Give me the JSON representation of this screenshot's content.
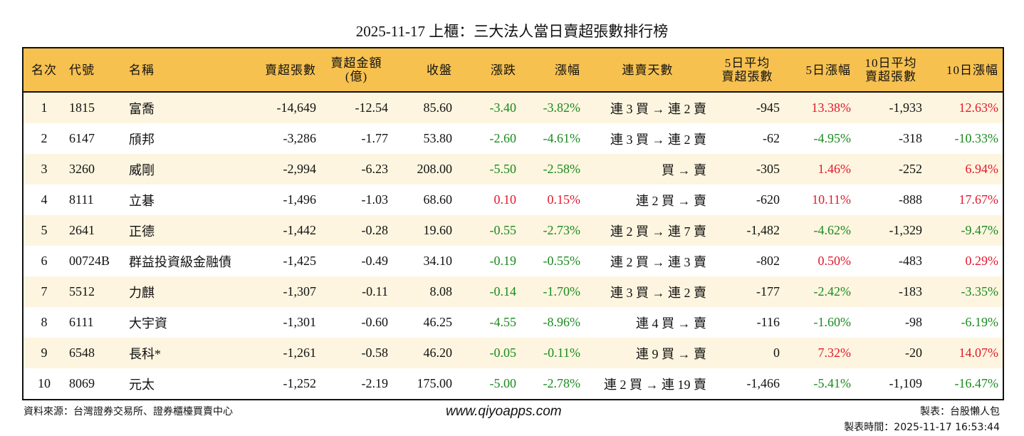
{
  "title": "2025-11-17 上櫃：三大法人當日賣超張數排行榜",
  "colors": {
    "header_bg": "#f7c150",
    "row_alt_bg": "#fdf5df",
    "up": "#e3182d",
    "down": "#1b8a1e"
  },
  "headers": [
    "名次",
    "代號",
    "名稱",
    "賣超張數",
    "賣超金額\n(億)",
    "收盤",
    "漲跌",
    "漲幅",
    "連賣天數",
    "5日平均\n賣超張數",
    "5日漲幅",
    "10日平均\n賣超張數",
    "10日漲幅"
  ],
  "rows": [
    [
      "1",
      "1815",
      "富喬",
      "-14,649",
      "-12.54",
      "85.60",
      "-3.40",
      "-3.82%",
      "連 3 買 → 連 2 賣",
      "-945",
      "13.38%",
      "-1,933",
      "12.63%"
    ],
    [
      "2",
      "6147",
      "頎邦",
      "-3,286",
      "-1.77",
      "53.80",
      "-2.60",
      "-4.61%",
      "連 3 買 → 連 2 賣",
      "-62",
      "-4.95%",
      "-318",
      "-10.33%"
    ],
    [
      "3",
      "3260",
      "威剛",
      "-2,994",
      "-6.23",
      "208.00",
      "-5.50",
      "-2.58%",
      "買 → 賣",
      "-305",
      "1.46%",
      "-252",
      "6.94%"
    ],
    [
      "4",
      "8111",
      "立碁",
      "-1,496",
      "-1.03",
      "68.60",
      "0.10",
      "0.15%",
      "連 2 買 → 賣",
      "-620",
      "10.11%",
      "-888",
      "17.67%"
    ],
    [
      "5",
      "2641",
      "正德",
      "-1,442",
      "-0.28",
      "19.60",
      "-0.55",
      "-2.73%",
      "連 2 買 → 連 7 賣",
      "-1,482",
      "-4.62%",
      "-1,329",
      "-9.47%"
    ],
    [
      "6",
      "00724B",
      "群益投資級金融債",
      "-1,425",
      "-0.49",
      "34.10",
      "-0.19",
      "-0.55%",
      "連 2 買 → 連 3 賣",
      "-802",
      "0.50%",
      "-483",
      "0.29%"
    ],
    [
      "7",
      "5512",
      "力麒",
      "-1,307",
      "-0.11",
      "8.08",
      "-0.14",
      "-1.70%",
      "連 3 買 → 連 2 賣",
      "-177",
      "-2.42%",
      "-183",
      "-3.35%"
    ],
    [
      "8",
      "6111",
      "大宇資",
      "-1,301",
      "-0.60",
      "46.25",
      "-4.55",
      "-8.96%",
      "連 4 買 → 賣",
      "-116",
      "-1.60%",
      "-98",
      "-6.19%"
    ],
    [
      "9",
      "6548",
      "長科*",
      "-1,261",
      "-0.58",
      "46.20",
      "-0.05",
      "-0.11%",
      "連 9 買 → 賣",
      "0",
      "7.32%",
      "-20",
      "14.07%"
    ],
    [
      "10",
      "8069",
      "元太",
      "-1,252",
      "-2.19",
      "175.00",
      "-5.00",
      "-2.78%",
      "連 2 買 → 連 19 賣",
      "-1,466",
      "-5.41%",
      "-1,109",
      "-16.47%"
    ]
  ],
  "footer": {
    "source": "資料來源：台灣證券交易所、證券櫃檯買賣中心",
    "website": "www.qiyoapps.com",
    "author": "製表：台股懶人包",
    "timestamp": "製表時間：2025-11-17 16:53:44"
  }
}
